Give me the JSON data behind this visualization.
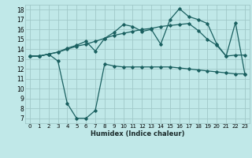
{
  "xlabel": "Humidex (Indice chaleur)",
  "background_color": "#c0e8e8",
  "grid_color": "#a0c8c8",
  "line_color": "#1a6060",
  "xlim": [
    -0.5,
    23.5
  ],
  "ylim": [
    6.5,
    18.5
  ],
  "xticks": [
    0,
    1,
    2,
    3,
    4,
    5,
    6,
    7,
    8,
    9,
    10,
    11,
    12,
    13,
    14,
    15,
    16,
    17,
    18,
    19,
    20,
    21,
    22,
    23
  ],
  "yticks": [
    7,
    8,
    9,
    10,
    11,
    12,
    13,
    14,
    15,
    16,
    17,
    18
  ],
  "line1_x": [
    0,
    1,
    2,
    3,
    4,
    5,
    6,
    7,
    8,
    9,
    10,
    11,
    12,
    13,
    14,
    15,
    16,
    17,
    18,
    19,
    20,
    21,
    22,
    23
  ],
  "line1_y": [
    13.3,
    13.3,
    13.5,
    13.7,
    14.0,
    14.3,
    14.5,
    14.8,
    15.1,
    15.4,
    15.6,
    15.8,
    16.0,
    16.1,
    16.3,
    16.4,
    16.5,
    16.6,
    15.9,
    15.0,
    14.4,
    13.3,
    13.4,
    13.4
  ],
  "line2_x": [
    0,
    1,
    2,
    3,
    4,
    5,
    6,
    7,
    8,
    9,
    10,
    11,
    12,
    13,
    14,
    15,
    16,
    17,
    18,
    19,
    20,
    21,
    22,
    23
  ],
  "line2_y": [
    13.3,
    13.3,
    13.5,
    13.7,
    14.1,
    14.4,
    14.8,
    13.8,
    15.1,
    15.7,
    16.5,
    16.3,
    15.8,
    16.0,
    14.5,
    17.0,
    18.1,
    17.3,
    17.0,
    16.6,
    14.5,
    13.3,
    16.7,
    11.5
  ],
  "line3_x": [
    0,
    1,
    2,
    3,
    4,
    5,
    6,
    7,
    8,
    9,
    10,
    11,
    12,
    13,
    14,
    15,
    16,
    17,
    18,
    19,
    20,
    21,
    22,
    23
  ],
  "line3_y": [
    13.3,
    13.3,
    13.5,
    12.8,
    8.5,
    7.0,
    7.0,
    7.8,
    12.5,
    12.3,
    12.2,
    12.2,
    12.2,
    12.2,
    12.2,
    12.2,
    12.1,
    12.0,
    11.9,
    11.8,
    11.7,
    11.6,
    11.5,
    11.5
  ]
}
